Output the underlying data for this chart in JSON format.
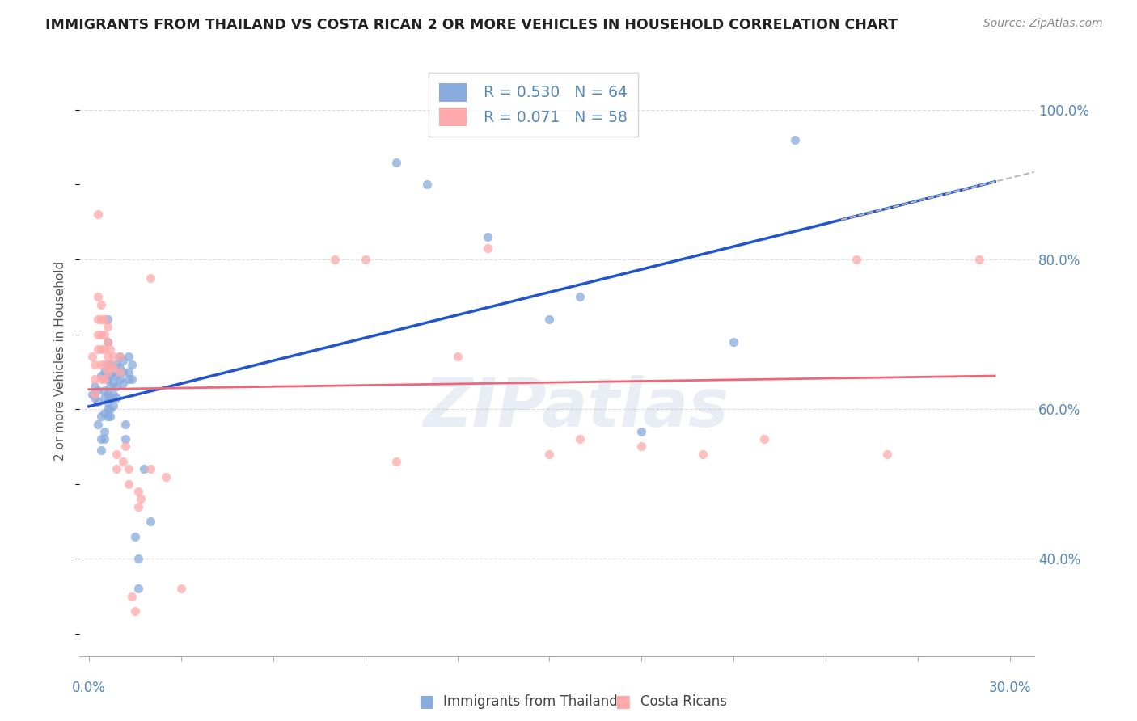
{
  "title": "IMMIGRANTS FROM THAILAND VS COSTA RICAN 2 OR MORE VEHICLES IN HOUSEHOLD CORRELATION CHART",
  "source": "Source: ZipAtlas.com",
  "ylabel": "2 or more Vehicles in Household",
  "xlim": [
    -0.003,
    0.308
  ],
  "ylim": [
    0.27,
    1.06
  ],
  "yticks": [
    0.4,
    0.6,
    0.8,
    1.0
  ],
  "ytick_labels": [
    "40.0%",
    "60.0%",
    "80.0%",
    "100.0%"
  ],
  "legend_blue_R": "0.530",
  "legend_blue_N": "64",
  "legend_pink_R": "0.071",
  "legend_pink_N": "58",
  "blue_scatter_color": "#88AADD",
  "pink_scatter_color": "#FFAAAA",
  "trendline_blue_color": "#2255CC",
  "trendline_pink_color": "#EE6677",
  "trendline_ext_color": "#BBBBBB",
  "grid_color": "#DDDDDD",
  "axis_label_color": "#5588BB",
  "title_color": "#222222",
  "watermark_text": "ZIPatlas",
  "watermark_color": "#AABBDD",
  "blue_x": [
    0.001,
    0.002,
    0.002,
    0.003,
    0.003,
    0.003,
    0.004,
    0.004,
    0.004,
    0.004,
    0.005,
    0.005,
    0.005,
    0.005,
    0.005,
    0.005,
    0.006,
    0.006,
    0.006,
    0.006,
    0.006,
    0.006,
    0.006,
    0.006,
    0.007,
    0.007,
    0.007,
    0.007,
    0.007,
    0.007,
    0.008,
    0.008,
    0.008,
    0.008,
    0.009,
    0.009,
    0.009,
    0.009,
    0.01,
    0.01,
    0.01,
    0.011,
    0.011,
    0.011,
    0.012,
    0.012,
    0.013,
    0.013,
    0.013,
    0.014,
    0.014,
    0.015,
    0.016,
    0.016,
    0.018,
    0.02,
    0.1,
    0.11,
    0.13,
    0.15,
    0.16,
    0.18,
    0.21,
    0.23
  ],
  "blue_y": [
    0.62,
    0.615,
    0.63,
    0.61,
    0.58,
    0.625,
    0.645,
    0.59,
    0.56,
    0.545,
    0.65,
    0.625,
    0.615,
    0.595,
    0.57,
    0.56,
    0.72,
    0.69,
    0.66,
    0.64,
    0.62,
    0.61,
    0.6,
    0.59,
    0.66,
    0.645,
    0.63,
    0.615,
    0.6,
    0.59,
    0.65,
    0.635,
    0.62,
    0.605,
    0.66,
    0.645,
    0.63,
    0.615,
    0.67,
    0.655,
    0.64,
    0.665,
    0.65,
    0.635,
    0.58,
    0.56,
    0.67,
    0.65,
    0.64,
    0.66,
    0.64,
    0.43,
    0.4,
    0.36,
    0.52,
    0.45,
    0.93,
    0.9,
    0.83,
    0.72,
    0.75,
    0.57,
    0.69,
    0.96
  ],
  "pink_x": [
    0.001,
    0.002,
    0.002,
    0.002,
    0.003,
    0.003,
    0.003,
    0.003,
    0.003,
    0.004,
    0.004,
    0.004,
    0.004,
    0.004,
    0.004,
    0.005,
    0.005,
    0.005,
    0.005,
    0.005,
    0.006,
    0.006,
    0.006,
    0.006,
    0.007,
    0.007,
    0.008,
    0.008,
    0.009,
    0.009,
    0.01,
    0.01,
    0.011,
    0.012,
    0.013,
    0.013,
    0.014,
    0.015,
    0.016,
    0.016,
    0.017,
    0.02,
    0.02,
    0.025,
    0.03,
    0.08,
    0.09,
    0.1,
    0.12,
    0.13,
    0.15,
    0.16,
    0.18,
    0.2,
    0.22,
    0.25,
    0.26,
    0.29
  ],
  "pink_y": [
    0.67,
    0.66,
    0.64,
    0.62,
    0.86,
    0.75,
    0.72,
    0.7,
    0.68,
    0.74,
    0.72,
    0.7,
    0.68,
    0.66,
    0.64,
    0.72,
    0.7,
    0.68,
    0.66,
    0.64,
    0.71,
    0.69,
    0.67,
    0.65,
    0.68,
    0.66,
    0.67,
    0.655,
    0.54,
    0.52,
    0.67,
    0.65,
    0.53,
    0.55,
    0.52,
    0.5,
    0.35,
    0.33,
    0.49,
    0.47,
    0.48,
    0.775,
    0.52,
    0.51,
    0.36,
    0.8,
    0.8,
    0.53,
    0.67,
    0.815,
    0.54,
    0.56,
    0.55,
    0.54,
    0.56,
    0.8,
    0.54,
    0.8
  ]
}
